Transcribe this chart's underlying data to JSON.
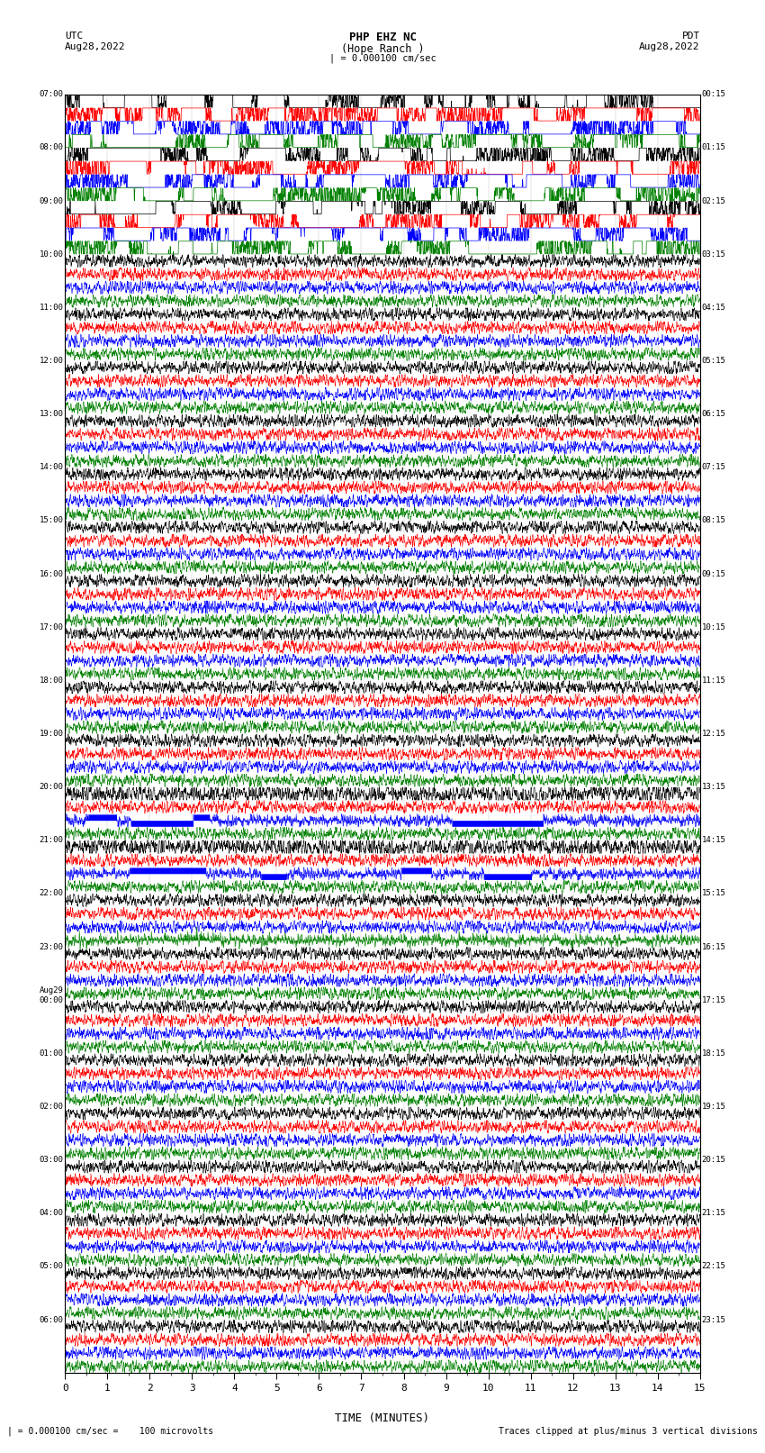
{
  "title_line1": "PHP EHZ NC",
  "title_line2": "(Hope Ranch )",
  "scale_label": "| = 0.000100 cm/sec",
  "utc_label": "UTC",
  "utc_date": "Aug28,2022",
  "pdt_label": "PDT",
  "pdt_date": "Aug28,2022",
  "xlabel": "TIME (MINUTES)",
  "footer_left": "| = 0.000100 cm/sec =    100 microvolts",
  "footer_right": "Traces clipped at plus/minus 3 vertical divisions",
  "bg_color": "#ffffff",
  "plot_bg": "#ffffff",
  "left_times": [
    "07:00",
    "08:00",
    "09:00",
    "10:00",
    "11:00",
    "12:00",
    "13:00",
    "14:00",
    "15:00",
    "16:00",
    "17:00",
    "18:00",
    "19:00",
    "20:00",
    "21:00",
    "22:00",
    "23:00",
    "Aug29\n00:00",
    "01:00",
    "02:00",
    "03:00",
    "04:00",
    "05:00",
    "06:00"
  ],
  "right_times": [
    "00:15",
    "01:15",
    "02:15",
    "03:15",
    "04:15",
    "05:15",
    "06:15",
    "07:15",
    "08:15",
    "09:15",
    "10:15",
    "11:15",
    "12:15",
    "13:15",
    "14:15",
    "15:15",
    "16:15",
    "17:15",
    "18:15",
    "19:15",
    "20:15",
    "21:15",
    "22:15",
    "23:15"
  ],
  "n_rows": 24,
  "n_traces_per_row": 4,
  "trace_colors": [
    "black",
    "red",
    "blue",
    "green"
  ],
  "interference_rows": [
    0,
    1,
    2
  ],
  "clipped_blue_rows": [
    13,
    14
  ],
  "eq_green_row14_minute": 5.0,
  "eq_green_row15_minute": 2.8,
  "eq_multi_row13_minute": 5.5,
  "spike_blue_row9_minute": 3.3,
  "spike_black_row5_minute": 3.8
}
